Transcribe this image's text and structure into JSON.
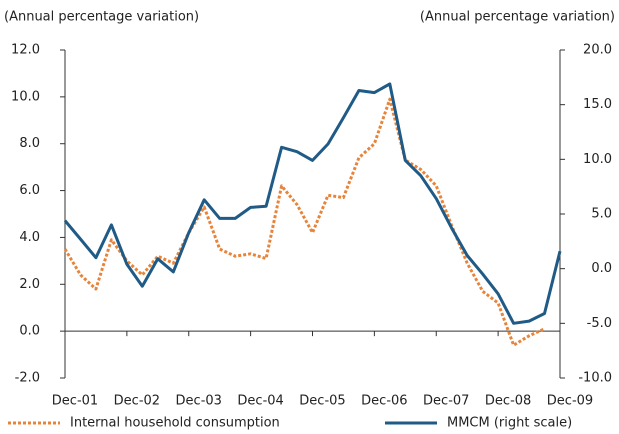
{
  "chart_data": {
    "type": "line",
    "y_label": "(Annual percentage variation)",
    "y2_label": "(Annual percentage variation)",
    "categories": [
      "Dec-01",
      null,
      null,
      null,
      "Dec-02",
      null,
      null,
      null,
      "Dec-03",
      null,
      null,
      null,
      "Dec-04",
      null,
      null,
      null,
      "Dec-05",
      null,
      null,
      null,
      "Dec-06",
      null,
      null,
      null,
      "Dec-07",
      null,
      null,
      null,
      "Dec-08",
      null,
      null,
      null,
      "Dec-09"
    ],
    "series": [
      {
        "name": "Internal household consumption",
        "color": "#e8843a",
        "dash": true,
        "values": [
          3.5,
          2.4,
          1.8,
          3.9,
          3.0,
          2.4,
          3.2,
          2.9,
          4.2,
          5.3,
          3.5,
          3.2,
          3.3,
          3.1,
          6.2,
          5.4,
          4.2,
          5.8,
          5.7,
          7.4,
          8.0,
          9.9,
          7.3,
          6.9,
          6.2,
          4.5,
          2.9,
          1.7,
          1.2,
          -0.6,
          -0.2,
          0.1,
          null
        ]
      },
      {
        "name": "MMCM (right scale)",
        "color": "#1f5b86",
        "axis": "y2",
        "values": [
          4.4,
          2.7,
          1.0,
          4.0,
          0.4,
          -1.6,
          0.9,
          -0.3,
          3.3,
          6.3,
          4.6,
          4.6,
          5.6,
          5.7,
          11.1,
          10.7,
          9.9,
          11.4,
          13.8,
          16.3,
          16.1,
          16.9,
          9.9,
          8.5,
          6.4,
          3.7,
          1.2,
          -0.5,
          -2.3,
          -5.0,
          -4.8,
          -4.1,
          1.6
        ]
      }
    ],
    "ylim": [
      -2,
      12
    ],
    "yticks": [
      {
        "value": -2,
        "label": "-2.0"
      },
      {
        "value": 0,
        "label": "0.0"
      },
      {
        "value": 2,
        "label": "2.0"
      },
      {
        "value": 4,
        "label": "4.0"
      },
      {
        "value": 6,
        "label": "6.0"
      },
      {
        "value": 8,
        "label": "8.0"
      },
      {
        "value": 10,
        "label": "10.0"
      },
      {
        "value": 12,
        "label": "12.0"
      }
    ],
    "y2lim": [
      -10,
      20
    ],
    "y2ticks": [
      {
        "value": -10,
        "label": "-10.0"
      },
      {
        "value": -5,
        "label": "-5.0"
      },
      {
        "value": 0,
        "label": "0.0"
      },
      {
        "value": 5,
        "label": "5.0"
      },
      {
        "value": 10,
        "label": "10.0"
      },
      {
        "value": 15,
        "label": "15.0"
      },
      {
        "value": 20,
        "label": "20.0"
      }
    ]
  }
}
